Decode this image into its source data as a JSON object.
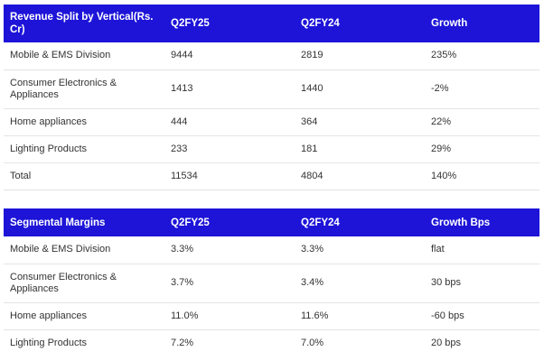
{
  "revenue_table": {
    "headers": [
      "Revenue Split by Vertical(Rs. Cr)",
      "Q2FY25",
      "Q2FY24",
      "Growth"
    ],
    "rows": [
      [
        "Mobile & EMS Division",
        "9444",
        "2819",
        "235%"
      ],
      [
        "Consumer Electronics & Appliances",
        "1413",
        "1440",
        "-2%"
      ],
      [
        "Home appliances",
        "444",
        "364",
        "22%"
      ],
      [
        "Lighting Products",
        "233",
        "181",
        "29%"
      ],
      [
        "Total",
        "11534",
        "4804",
        "140%"
      ]
    ]
  },
  "margins_table": {
    "headers": [
      "Segmental Margins",
      "Q2FY25",
      "Q2FY24",
      "Growth Bps"
    ],
    "rows": [
      [
        "Mobile & EMS Division",
        "3.3%",
        "3.3%",
        "flat"
      ],
      [
        "Consumer Electronics & Appliances",
        "3.7%",
        "3.4%",
        "30 bps"
      ],
      [
        "Home appliances",
        "11.0%",
        "11.6%",
        "-60 bps"
      ],
      [
        "Lighting Products",
        "7.2%",
        "7.0%",
        "20 bps"
      ]
    ]
  },
  "colors": {
    "header_background": "#1d14d8",
    "header_text": "#ffffff",
    "body_text": "#333333",
    "row_divider": "#e4e4e4"
  }
}
